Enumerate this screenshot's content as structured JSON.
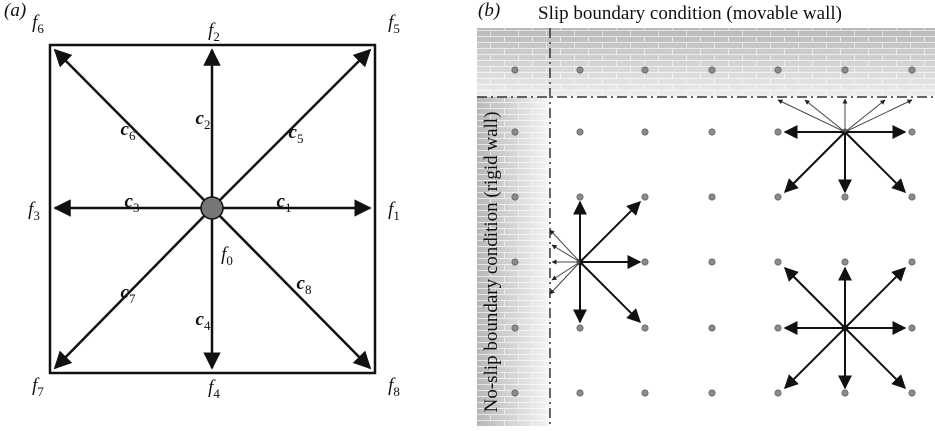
{
  "panel_a": {
    "label": "(a)",
    "distributions": [
      {
        "symbol": "f",
        "subscript": "0"
      },
      {
        "symbol": "f",
        "subscript": "1"
      },
      {
        "symbol": "f",
        "subscript": "2"
      },
      {
        "symbol": "f",
        "subscript": "3"
      },
      {
        "symbol": "f",
        "subscript": "4"
      },
      {
        "symbol": "f",
        "subscript": "5"
      },
      {
        "symbol": "f",
        "subscript": "6"
      },
      {
        "symbol": "f",
        "subscript": "7"
      },
      {
        "symbol": "f",
        "subscript": "8"
      }
    ],
    "vectors": [
      {
        "symbol": "c",
        "subscript": "1"
      },
      {
        "symbol": "c",
        "subscript": "2"
      },
      {
        "symbol": "c",
        "subscript": "3"
      },
      {
        "symbol": "c",
        "subscript": "4"
      },
      {
        "symbol": "c",
        "subscript": "5"
      },
      {
        "symbol": "c",
        "subscript": "6"
      },
      {
        "symbol": "c",
        "subscript": "7"
      },
      {
        "symbol": "c",
        "subscript": "8"
      }
    ]
  },
  "panel_b": {
    "label": "(b)",
    "top_caption": "Slip boundary condition (movable wall)",
    "side_caption": "No-slip boundary condition (rigid wall)"
  }
}
